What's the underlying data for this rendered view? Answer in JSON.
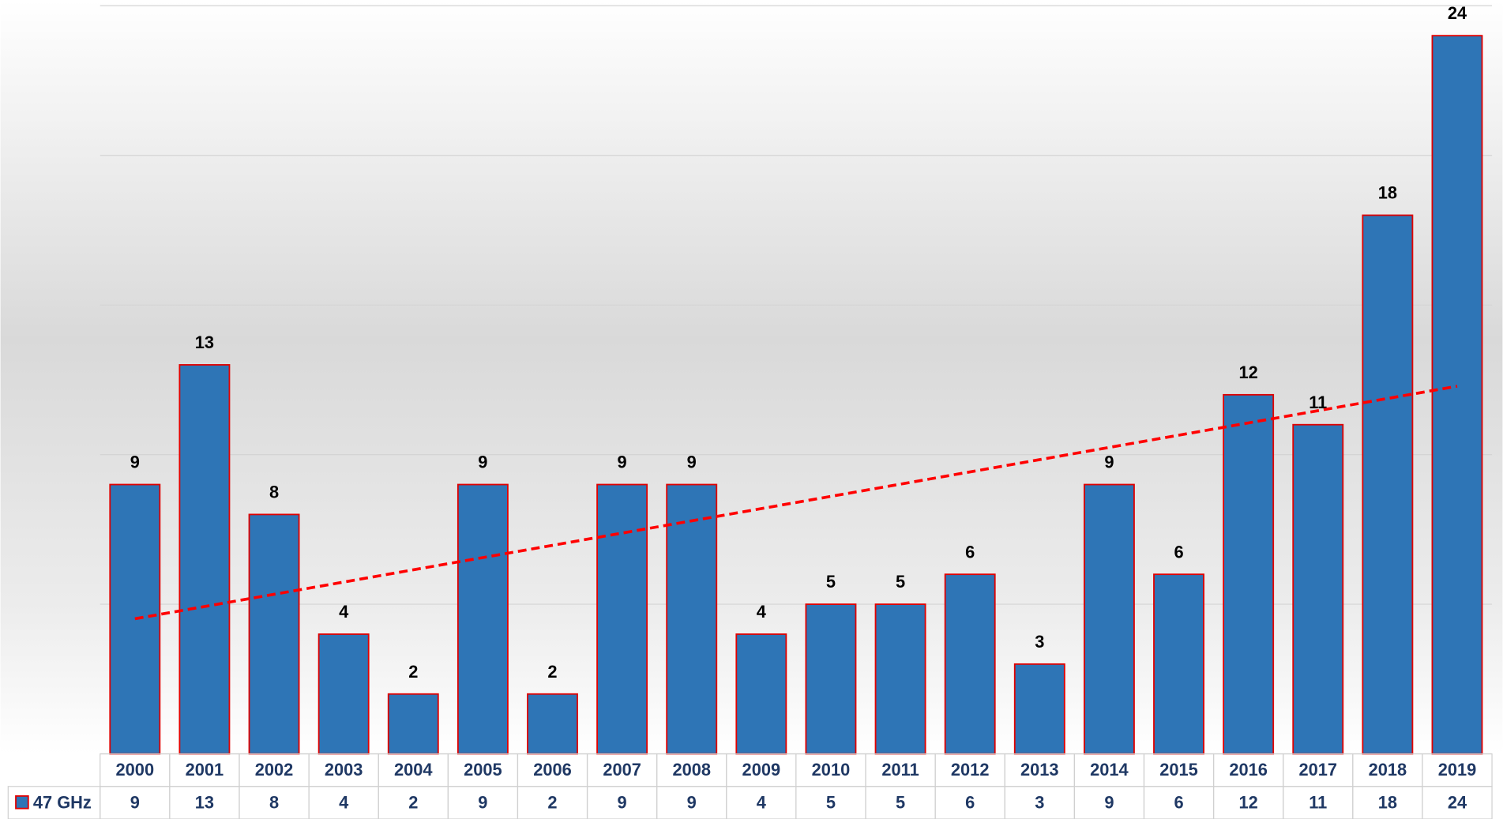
{
  "chart_data": {
    "type": "bar",
    "categories": [
      "2000",
      "2001",
      "2002",
      "2003",
      "2004",
      "2005",
      "2006",
      "2007",
      "2008",
      "2009",
      "2010",
      "2011",
      "2012",
      "2013",
      "2014",
      "2015",
      "2016",
      "2017",
      "2018",
      "2019"
    ],
    "series": [
      {
        "name": "47 GHz",
        "color": "#2e75b6",
        "edge_color": "#e00000",
        "values": [
          9,
          13,
          8,
          4,
          2,
          9,
          2,
          9,
          9,
          4,
          5,
          5,
          6,
          3,
          9,
          6,
          12,
          11,
          18,
          24
        ]
      }
    ],
    "ylim": [
      0,
      25
    ],
    "yticks": [
      0,
      5,
      10,
      15,
      20,
      25
    ],
    "grid": true,
    "trendline": {
      "type": "linear",
      "color": "#ff0000",
      "dashed": true
    },
    "data_table": true
  }
}
